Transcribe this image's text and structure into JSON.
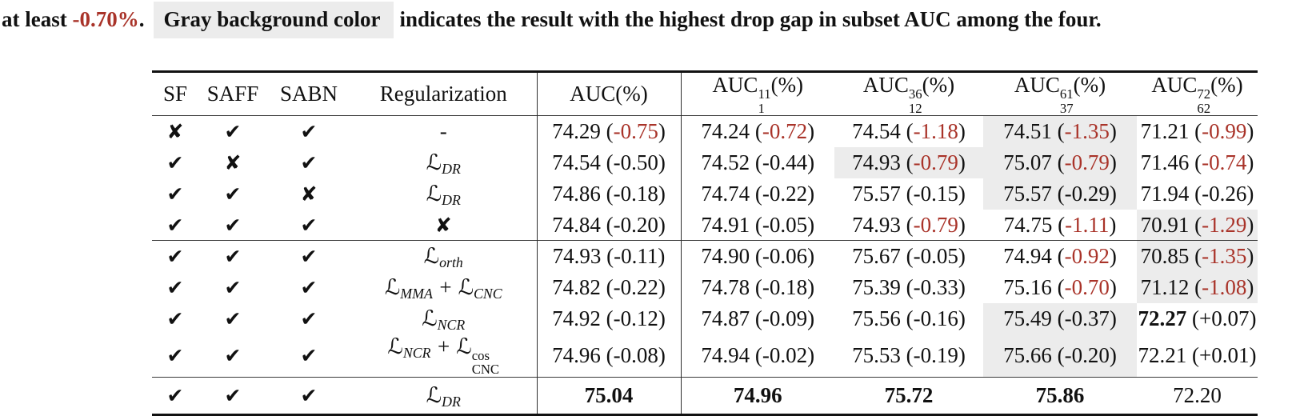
{
  "colors": {
    "accent_red": "#a93329",
    "highlight_gray": "#ececec"
  },
  "caption": {
    "part1": "at least ",
    "threshold": "-0.70%",
    "part2": ".",
    "gray_label": "Gray background color",
    "part3": "indicates the result with the highest drop gap in subset AUC among the four."
  },
  "table": {
    "marks": {
      "c": "✔",
      "x": "✘"
    },
    "format": {
      "paren_open": "(",
      "paren_close": ")"
    },
    "headers": [
      {
        "label": "SF"
      },
      {
        "label": "SAFF"
      },
      {
        "label": "SABN"
      },
      {
        "label": "Regularization"
      },
      {
        "label": "AUC",
        "pct": "(%)"
      },
      {
        "label": "AUC",
        "sup": "11",
        "sub": "1",
        "pct": "(%)"
      },
      {
        "label": "AUC",
        "sup": "36",
        "sub": "12",
        "pct": "(%)"
      },
      {
        "label": "AUC",
        "sup": "61",
        "sub": "37",
        "pct": "(%)"
      },
      {
        "label": "AUC",
        "sup": "72",
        "sub": "62",
        "pct": "(%)"
      }
    ],
    "rows": [
      {
        "group": 1,
        "marks": [
          "x",
          "c",
          "c"
        ],
        "reg": "-",
        "cells": [
          {
            "v": "74.29",
            "d": "-0.75",
            "red": true
          },
          {
            "v": "74.24",
            "d": "-0.72",
            "red": true
          },
          {
            "v": "74.54",
            "d": "-1.18",
            "red": true
          },
          {
            "v": "74.51",
            "d": "-1.35",
            "red": true,
            "gray": true
          },
          {
            "v": "71.21",
            "d": "-0.99",
            "red": true
          }
        ]
      },
      {
        "group": 1,
        "marks": [
          "c",
          "x",
          "c"
        ],
        "reg": "ℒ_{DR}",
        "cells": [
          {
            "v": "74.54",
            "d": "-0.50"
          },
          {
            "v": "74.52",
            "d": "-0.44"
          },
          {
            "v": "74.93",
            "d": "-0.79",
            "red": true,
            "gray": true
          },
          {
            "v": "75.07",
            "d": "-0.79",
            "red": true,
            "gray": true
          },
          {
            "v": "71.46",
            "d": "-0.74",
            "red": true
          }
        ]
      },
      {
        "group": 1,
        "marks": [
          "c",
          "c",
          "x"
        ],
        "reg": "ℒ_{DR}",
        "cells": [
          {
            "v": "74.86",
            "d": "-0.18"
          },
          {
            "v": "74.74",
            "d": "-0.22"
          },
          {
            "v": "75.57",
            "d": "-0.15"
          },
          {
            "v": "75.57",
            "d": "-0.29",
            "gray": true
          },
          {
            "v": "71.94",
            "d": "-0.26"
          }
        ]
      },
      {
        "group": 1,
        "marks": [
          "c",
          "c",
          "c"
        ],
        "reg": "✘",
        "cells": [
          {
            "v": "74.84",
            "d": "-0.20"
          },
          {
            "v": "74.91",
            "d": "-0.05"
          },
          {
            "v": "74.93",
            "d": "-0.79",
            "red": true
          },
          {
            "v": "74.75",
            "d": "-1.11",
            "red": true
          },
          {
            "v": "70.91",
            "d": "-1.29",
            "red": true,
            "gray": true
          }
        ]
      },
      {
        "group": 2,
        "marks": [
          "c",
          "c",
          "c"
        ],
        "reg": "ℒ_{orth}",
        "cells": [
          {
            "v": "74.93",
            "d": "-0.11"
          },
          {
            "v": "74.90",
            "d": "-0.06"
          },
          {
            "v": "75.67",
            "d": "-0.05"
          },
          {
            "v": "74.94",
            "d": "-0.92",
            "red": true
          },
          {
            "v": "70.85",
            "d": "-1.35",
            "red": true,
            "gray": true
          }
        ]
      },
      {
        "group": 2,
        "marks": [
          "c",
          "c",
          "c"
        ],
        "reg": "ℒ_{MMA} + ℒ_{CNC}",
        "cells": [
          {
            "v": "74.82",
            "d": "-0.22"
          },
          {
            "v": "74.78",
            "d": "-0.18"
          },
          {
            "v": "75.39",
            "d": "-0.33"
          },
          {
            "v": "75.16",
            "d": "-0.70",
            "red": true
          },
          {
            "v": "71.12",
            "d": "-1.08",
            "red": true,
            "gray": true
          }
        ]
      },
      {
        "group": 2,
        "marks": [
          "c",
          "c",
          "c"
        ],
        "reg": "ℒ_{NCR}",
        "cells": [
          {
            "v": "74.92",
            "d": "-0.12"
          },
          {
            "v": "74.87",
            "d": "-0.09"
          },
          {
            "v": "75.56",
            "d": "-0.16"
          },
          {
            "v": "75.49",
            "d": "-0.37",
            "gray": true
          },
          {
            "v": "72.27",
            "d": "+0.07",
            "bold": true
          }
        ]
      },
      {
        "group": 2,
        "marks": [
          "c",
          "c",
          "c"
        ],
        "reg": "ℒ_{NCR} + ℒ_{CNC}^{cos}",
        "cells": [
          {
            "v": "74.96",
            "d": "-0.08"
          },
          {
            "v": "74.94",
            "d": "-0.02"
          },
          {
            "v": "75.53",
            "d": "-0.19"
          },
          {
            "v": "75.66",
            "d": "-0.20",
            "gray": true
          },
          {
            "v": "72.21",
            "d": "+0.01"
          }
        ]
      },
      {
        "group": 3,
        "marks": [
          "c",
          "c",
          "c"
        ],
        "reg": "ℒ_{DR}",
        "cells": [
          {
            "v": "75.04",
            "bold": true
          },
          {
            "v": "74.96",
            "bold": true
          },
          {
            "v": "75.72",
            "bold": true
          },
          {
            "v": "75.86",
            "bold": true
          },
          {
            "v": "72.20"
          }
        ]
      }
    ]
  }
}
